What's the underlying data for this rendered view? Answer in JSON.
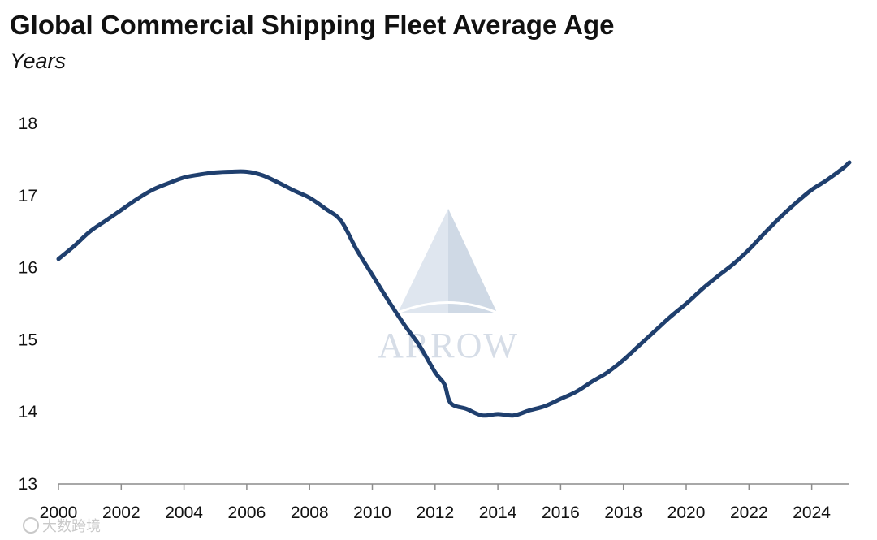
{
  "chart_data": {
    "type": "line",
    "title": "Global Commercial Shipping Fleet Average Age",
    "subtitle": "Years",
    "xlabel": "",
    "ylabel": "Years",
    "xlim": [
      2000,
      2025.2
    ],
    "ylim": [
      13,
      18
    ],
    "y_ticks": [
      "13",
      "14",
      "15",
      "16",
      "17",
      "18"
    ],
    "x_ticks": [
      "2000",
      "2002",
      "2004",
      "2006",
      "2008",
      "2010",
      "2012",
      "2014",
      "2016",
      "2018",
      "2020",
      "2022",
      "2024"
    ],
    "grid": false,
    "series": [
      {
        "name": "Average Age",
        "color": "#1f3f6e",
        "x": [
          2000,
          2000.5,
          2001,
          2001.5,
          2002,
          2002.5,
          2003,
          2003.5,
          2004,
          2004.5,
          2005,
          2005.5,
          2006,
          2006.5,
          2007,
          2007.5,
          2008,
          2008.5,
          2009,
          2009.5,
          2010,
          2010.5,
          2011,
          2011.5,
          2012,
          2012.3,
          2012.5,
          2013,
          2013.5,
          2014,
          2014.5,
          2015,
          2015.5,
          2016,
          2016.5,
          2017,
          2017.5,
          2018,
          2018.5,
          2019,
          2019.5,
          2020,
          2020.5,
          2021,
          2021.5,
          2022,
          2022.5,
          2023,
          2023.5,
          2024,
          2024.5,
          2025,
          2025.2
        ],
        "values": [
          16.12,
          16.3,
          16.5,
          16.65,
          16.8,
          16.95,
          17.08,
          17.17,
          17.25,
          17.29,
          17.32,
          17.33,
          17.33,
          17.28,
          17.18,
          17.07,
          16.97,
          16.82,
          16.65,
          16.25,
          15.9,
          15.55,
          15.22,
          14.92,
          14.55,
          14.38,
          14.12,
          14.04,
          13.95,
          13.97,
          13.95,
          14.02,
          14.08,
          14.18,
          14.28,
          14.42,
          14.55,
          14.72,
          14.92,
          15.12,
          15.32,
          15.5,
          15.7,
          15.88,
          16.05,
          16.25,
          16.48,
          16.7,
          16.9,
          17.08,
          17.22,
          17.38,
          17.46
        ]
      }
    ]
  },
  "watermark": {
    "brand_text": "ARROW",
    "cn_text": "大数跨境"
  }
}
